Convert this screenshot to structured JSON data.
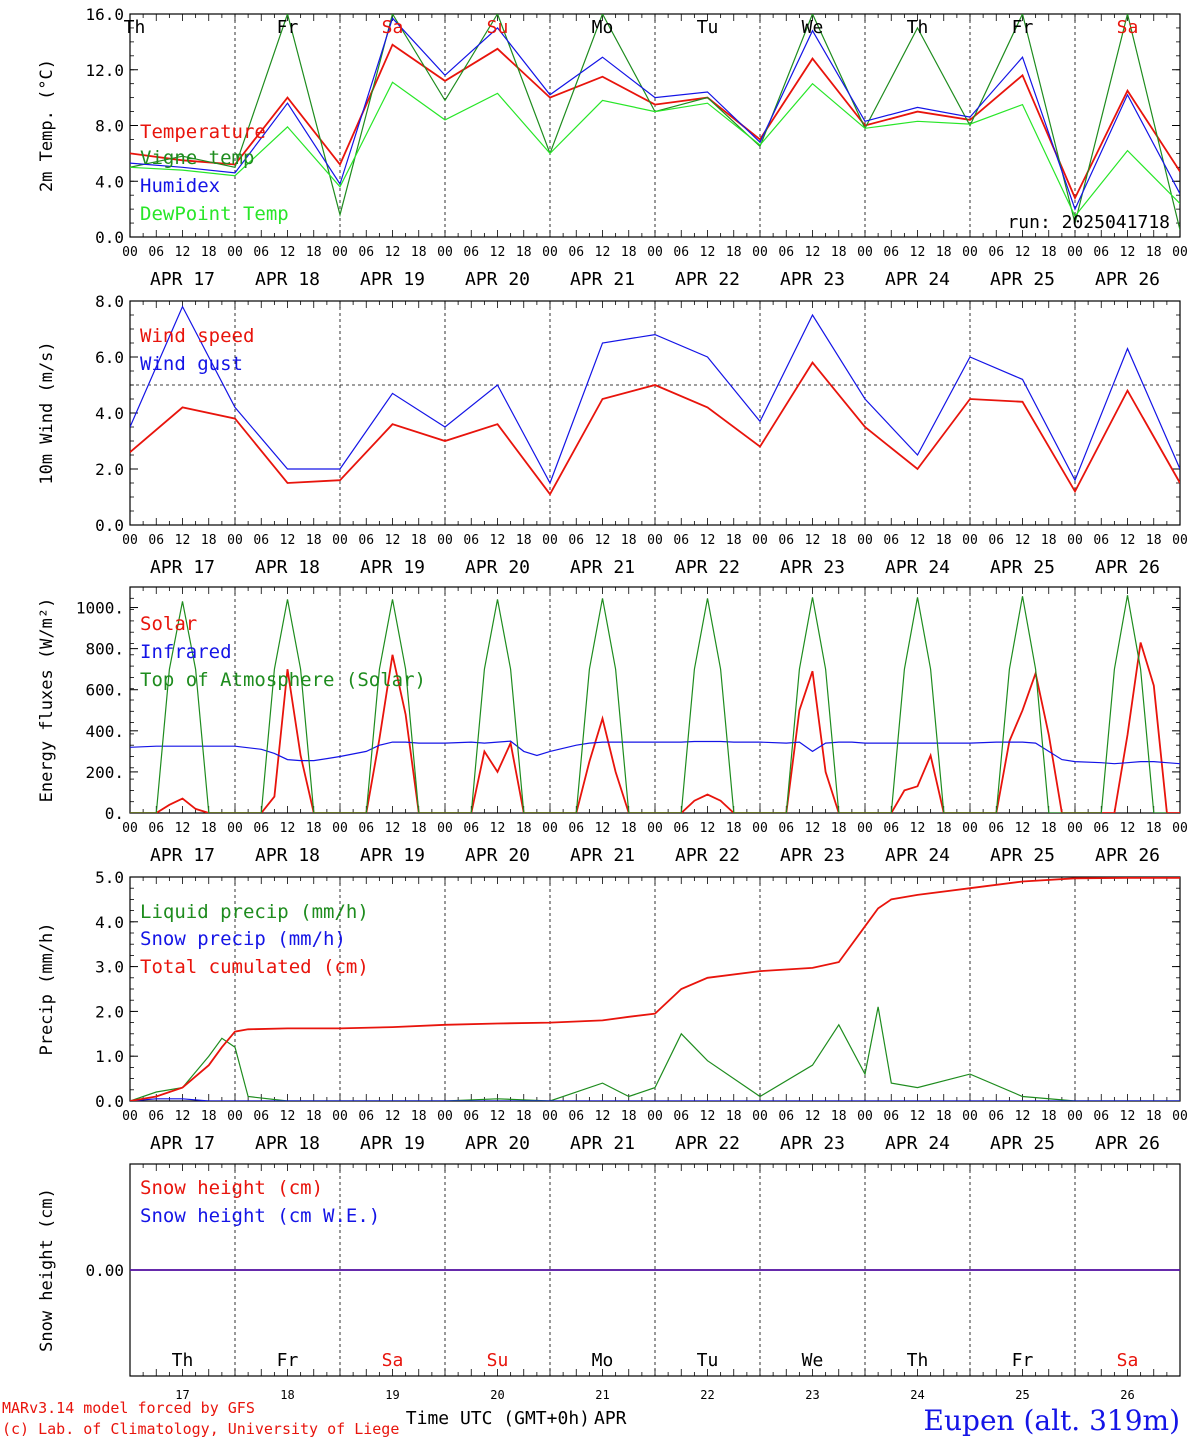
{
  "colors": {
    "red": "#e8140c",
    "blue": "#1414e6",
    "dark_green": "#1e8c1e",
    "light_green": "#28e628",
    "axis": "#000000",
    "grid": "#000000"
  },
  "days": [
    {
      "abbr": "Th",
      "num": "17",
      "weekend": false
    },
    {
      "abbr": "Fr",
      "num": "18",
      "weekend": false
    },
    {
      "abbr": "Sa",
      "num": "19",
      "weekend": true
    },
    {
      "abbr": "Su",
      "num": "20",
      "weekend": true
    },
    {
      "abbr": "Mo",
      "num": "21",
      "weekend": false
    },
    {
      "abbr": "Tu",
      "num": "22",
      "weekend": false
    },
    {
      "abbr": "We",
      "num": "23",
      "weekend": false
    },
    {
      "abbr": "Th",
      "num": "24",
      "weekend": false
    },
    {
      "abbr": "Fr",
      "num": "25",
      "weekend": false
    },
    {
      "abbr": "Sa",
      "num": "26",
      "weekend": true
    }
  ],
  "hour_ticks": [
    "00",
    "06",
    "12",
    "18"
  ],
  "date_labels": [
    "APR 17",
    "APR 18",
    "APR 19",
    "APR 20",
    "APR 21",
    "APR 22",
    "APR 23",
    "APR 24",
    "APR 25",
    "APR 26"
  ],
  "footer": {
    "model": "MARv3.14 model forced by GFS",
    "credit": "(c) Lab. of Climatology, University of Liege",
    "xlabel": "Time UTC (GMT+0h)",
    "month": "APR",
    "station": "Eupen (alt. 319m)"
  },
  "chart_data": [
    {
      "type": "line",
      "ylabel": "2m Temp. (°C)",
      "ylim": [
        0,
        16
      ],
      "yticks": [
        "0.0",
        "4.0",
        "8.0",
        "12.0",
        "16.0"
      ],
      "annotation": "run: 2025041718",
      "x_hours": [
        0,
        12,
        24,
        36,
        48,
        60,
        72,
        84,
        96,
        108,
        120,
        132,
        144,
        156,
        168,
        180,
        192,
        204,
        216,
        228,
        240
      ],
      "series": [
        {
          "name": "Temperature",
          "color_key": "red",
          "values": [
            6.0,
            5.5,
            5.2,
            10.0,
            5.2,
            13.8,
            11.2,
            13.5,
            10.0,
            11.5,
            9.5,
            10.0,
            7.0,
            12.8,
            8.0,
            9.0,
            8.4,
            11.6,
            2.8,
            10.5,
            4.7
          ]
        },
        {
          "name": "Vigne temp",
          "color_key": "dark_green",
          "values": [
            5.0,
            5.8,
            5.0,
            16.0,
            1.6,
            16.0,
            9.8,
            16.0,
            6.0,
            16.0,
            9.0,
            10.0,
            6.5,
            16.0,
            7.8,
            15.0,
            8.0,
            16.0,
            1.0,
            16.0,
            0.5
          ]
        },
        {
          "name": "Humidex",
          "color_key": "blue",
          "values": [
            5.3,
            5.0,
            4.6,
            9.6,
            3.8,
            15.7,
            11.6,
            15.0,
            10.2,
            12.9,
            10.0,
            10.4,
            6.8,
            14.8,
            8.3,
            9.3,
            8.6,
            12.9,
            2.0,
            10.2,
            3.1
          ]
        },
        {
          "name": "DewPoint Temp",
          "color_key": "light_green",
          "values": [
            5.0,
            4.8,
            4.4,
            7.9,
            3.6,
            11.1,
            8.4,
            10.3,
            6.0,
            9.8,
            9.0,
            9.6,
            6.6,
            11.0,
            7.8,
            8.3,
            8.1,
            9.5,
            1.5,
            6.2,
            2.4
          ]
        }
      ]
    },
    {
      "type": "line",
      "ylabel": "10m Wind (m/s)",
      "ylim": [
        0,
        8
      ],
      "yticks": [
        "0.0",
        "2.0",
        "4.0",
        "6.0",
        "8.0"
      ],
      "reference_line": 5,
      "x_hours": [
        0,
        12,
        24,
        36,
        48,
        60,
        72,
        84,
        96,
        108,
        120,
        132,
        144,
        156,
        168,
        180,
        192,
        204,
        216,
        228,
        240
      ],
      "series": [
        {
          "name": "Wind speed",
          "color_key": "red",
          "values": [
            2.6,
            4.2,
            3.8,
            1.5,
            1.6,
            3.6,
            3.0,
            3.6,
            1.1,
            4.5,
            5.0,
            4.2,
            2.8,
            5.8,
            3.5,
            2.0,
            4.5,
            4.4,
            1.2,
            4.8,
            1.5
          ]
        },
        {
          "name": "Wind gust",
          "color_key": "blue",
          "values": [
            3.5,
            7.8,
            4.2,
            2.0,
            2.0,
            4.7,
            3.5,
            5.0,
            1.5,
            6.5,
            6.8,
            6.0,
            3.7,
            7.5,
            4.5,
            2.5,
            6.0,
            5.2,
            1.6,
            6.3,
            2.0
          ]
        }
      ]
    },
    {
      "type": "line",
      "ylabel": "Energy fluxes (W/m²)",
      "ylim": [
        0,
        1100
      ],
      "yticks": [
        "0.",
        "200.",
        "400.",
        "600.",
        "800.",
        "1000."
      ],
      "x_hours": [
        0,
        6,
        9,
        12,
        15,
        18,
        21,
        24,
        30,
        33,
        36,
        39,
        42,
        45,
        48,
        54,
        57,
        60,
        63,
        66,
        69,
        72,
        78,
        81,
        84,
        87,
        90,
        93,
        96,
        102,
        105,
        108,
        111,
        114,
        117,
        120,
        126,
        129,
        132,
        135,
        138,
        141,
        144,
        150,
        153,
        156,
        159,
        162,
        165,
        168,
        174,
        177,
        180,
        183,
        186,
        189,
        192,
        198,
        201,
        204,
        207,
        210,
        213,
        216,
        222,
        225,
        228,
        231,
        234,
        237,
        240
      ],
      "series": [
        {
          "name": "Solar",
          "color_key": "red",
          "values": [
            0,
            0,
            40,
            70,
            20,
            0,
            0,
            0,
            0,
            80,
            700,
            280,
            0,
            0,
            0,
            0,
            360,
            770,
            480,
            0,
            0,
            0,
            0,
            300,
            200,
            340,
            0,
            0,
            0,
            0,
            250,
            460,
            200,
            0,
            0,
            0,
            0,
            60,
            90,
            60,
            0,
            0,
            0,
            0,
            500,
            690,
            200,
            0,
            0,
            0,
            0,
            110,
            130,
            280,
            0,
            0,
            0,
            0,
            350,
            500,
            680,
            380,
            0,
            0,
            0,
            0,
            380,
            830,
            620,
            0,
            0
          ]
        },
        {
          "name": "Infrared",
          "color_key": "blue",
          "values": [
            320,
            325,
            325,
            325,
            325,
            325,
            325,
            325,
            310,
            290,
            260,
            255,
            255,
            265,
            275,
            300,
            330,
            345,
            345,
            340,
            340,
            340,
            345,
            340,
            345,
            350,
            300,
            280,
            300,
            330,
            340,
            345,
            345,
            345,
            345,
            345,
            345,
            348,
            348,
            348,
            345,
            345,
            345,
            340,
            345,
            300,
            340,
            345,
            345,
            340,
            340,
            340,
            340,
            340,
            340,
            340,
            340,
            345,
            345,
            345,
            340,
            300,
            260,
            250,
            245,
            240,
            245,
            250,
            250,
            245,
            240
          ]
        },
        {
          "name": "Top of Atmosphere (Solar)",
          "color_key": "dark_green",
          "values": [
            0,
            0,
            700,
            1030,
            700,
            0,
            0,
            0,
            0,
            700,
            1040,
            700,
            0,
            0,
            0,
            0,
            700,
            1040,
            700,
            0,
            0,
            0,
            0,
            700,
            1040,
            700,
            0,
            0,
            0,
            0,
            700,
            1045,
            700,
            0,
            0,
            0,
            0,
            700,
            1045,
            700,
            0,
            0,
            0,
            0,
            700,
            1050,
            700,
            0,
            0,
            0,
            0,
            700,
            1050,
            700,
            0,
            0,
            0,
            0,
            700,
            1055,
            700,
            0,
            0,
            0,
            0,
            700,
            1060,
            700,
            0,
            0
          ]
        }
      ]
    },
    {
      "type": "line",
      "ylabel": "Precip (mm/h)",
      "ylim": [
        0,
        5
      ],
      "yticks": [
        "0.0",
        "1.0",
        "2.0",
        "3.0",
        "4.0",
        "5.0"
      ],
      "x_hours": [
        0,
        6,
        12,
        18,
        21,
        24,
        27,
        36,
        48,
        60,
        72,
        84,
        96,
        108,
        114,
        120,
        126,
        132,
        144,
        156,
        162,
        168,
        171,
        174,
        180,
        192,
        204,
        216,
        228,
        240
      ],
      "series": [
        {
          "name": "Liquid precip (mm/h)",
          "color_key": "dark_green",
          "values": [
            0,
            0.2,
            0.3,
            1.0,
            1.4,
            1.2,
            0.1,
            0,
            0,
            0,
            0,
            0.05,
            0,
            0.4,
            0.1,
            0.3,
            1.5,
            0.9,
            0.1,
            0.8,
            1.7,
            0.6,
            2.1,
            0.4,
            0.3,
            0.6,
            0.1,
            0,
            0,
            0
          ]
        },
        {
          "name": "Snow precip (mm/h)",
          "color_key": "blue",
          "values": [
            0,
            0.05,
            0.05,
            0,
            0,
            0,
            0,
            0,
            0,
            0,
            0,
            0,
            0,
            0,
            0,
            0,
            0,
            0,
            0,
            0,
            0,
            0,
            0,
            0,
            0,
            0,
            0,
            0,
            0,
            0
          ]
        },
        {
          "name": "Total cumulated (cm)",
          "color_key": "red",
          "values": [
            0,
            0.1,
            0.3,
            0.8,
            1.2,
            1.55,
            1.6,
            1.62,
            1.62,
            1.65,
            1.7,
            1.73,
            1.75,
            1.8,
            1.88,
            1.95,
            2.5,
            2.75,
            2.9,
            2.97,
            3.1,
            3.9,
            4.3,
            4.5,
            4.6,
            4.75,
            4.9,
            4.97,
            4.98,
            4.98
          ]
        }
      ]
    },
    {
      "type": "line",
      "ylabel": "Snow height (cm)",
      "ylim": [
        -1,
        1
      ],
      "yticks": [
        "0.00"
      ],
      "x_hours": [
        0,
        240
      ],
      "series": [
        {
          "name": "Snow height (cm)",
          "color_key": "red",
          "values": [
            0,
            0
          ]
        },
        {
          "name": "Snow height (cm W.E.)",
          "color_key": "blue",
          "values": [
            0,
            0
          ]
        }
      ]
    }
  ]
}
